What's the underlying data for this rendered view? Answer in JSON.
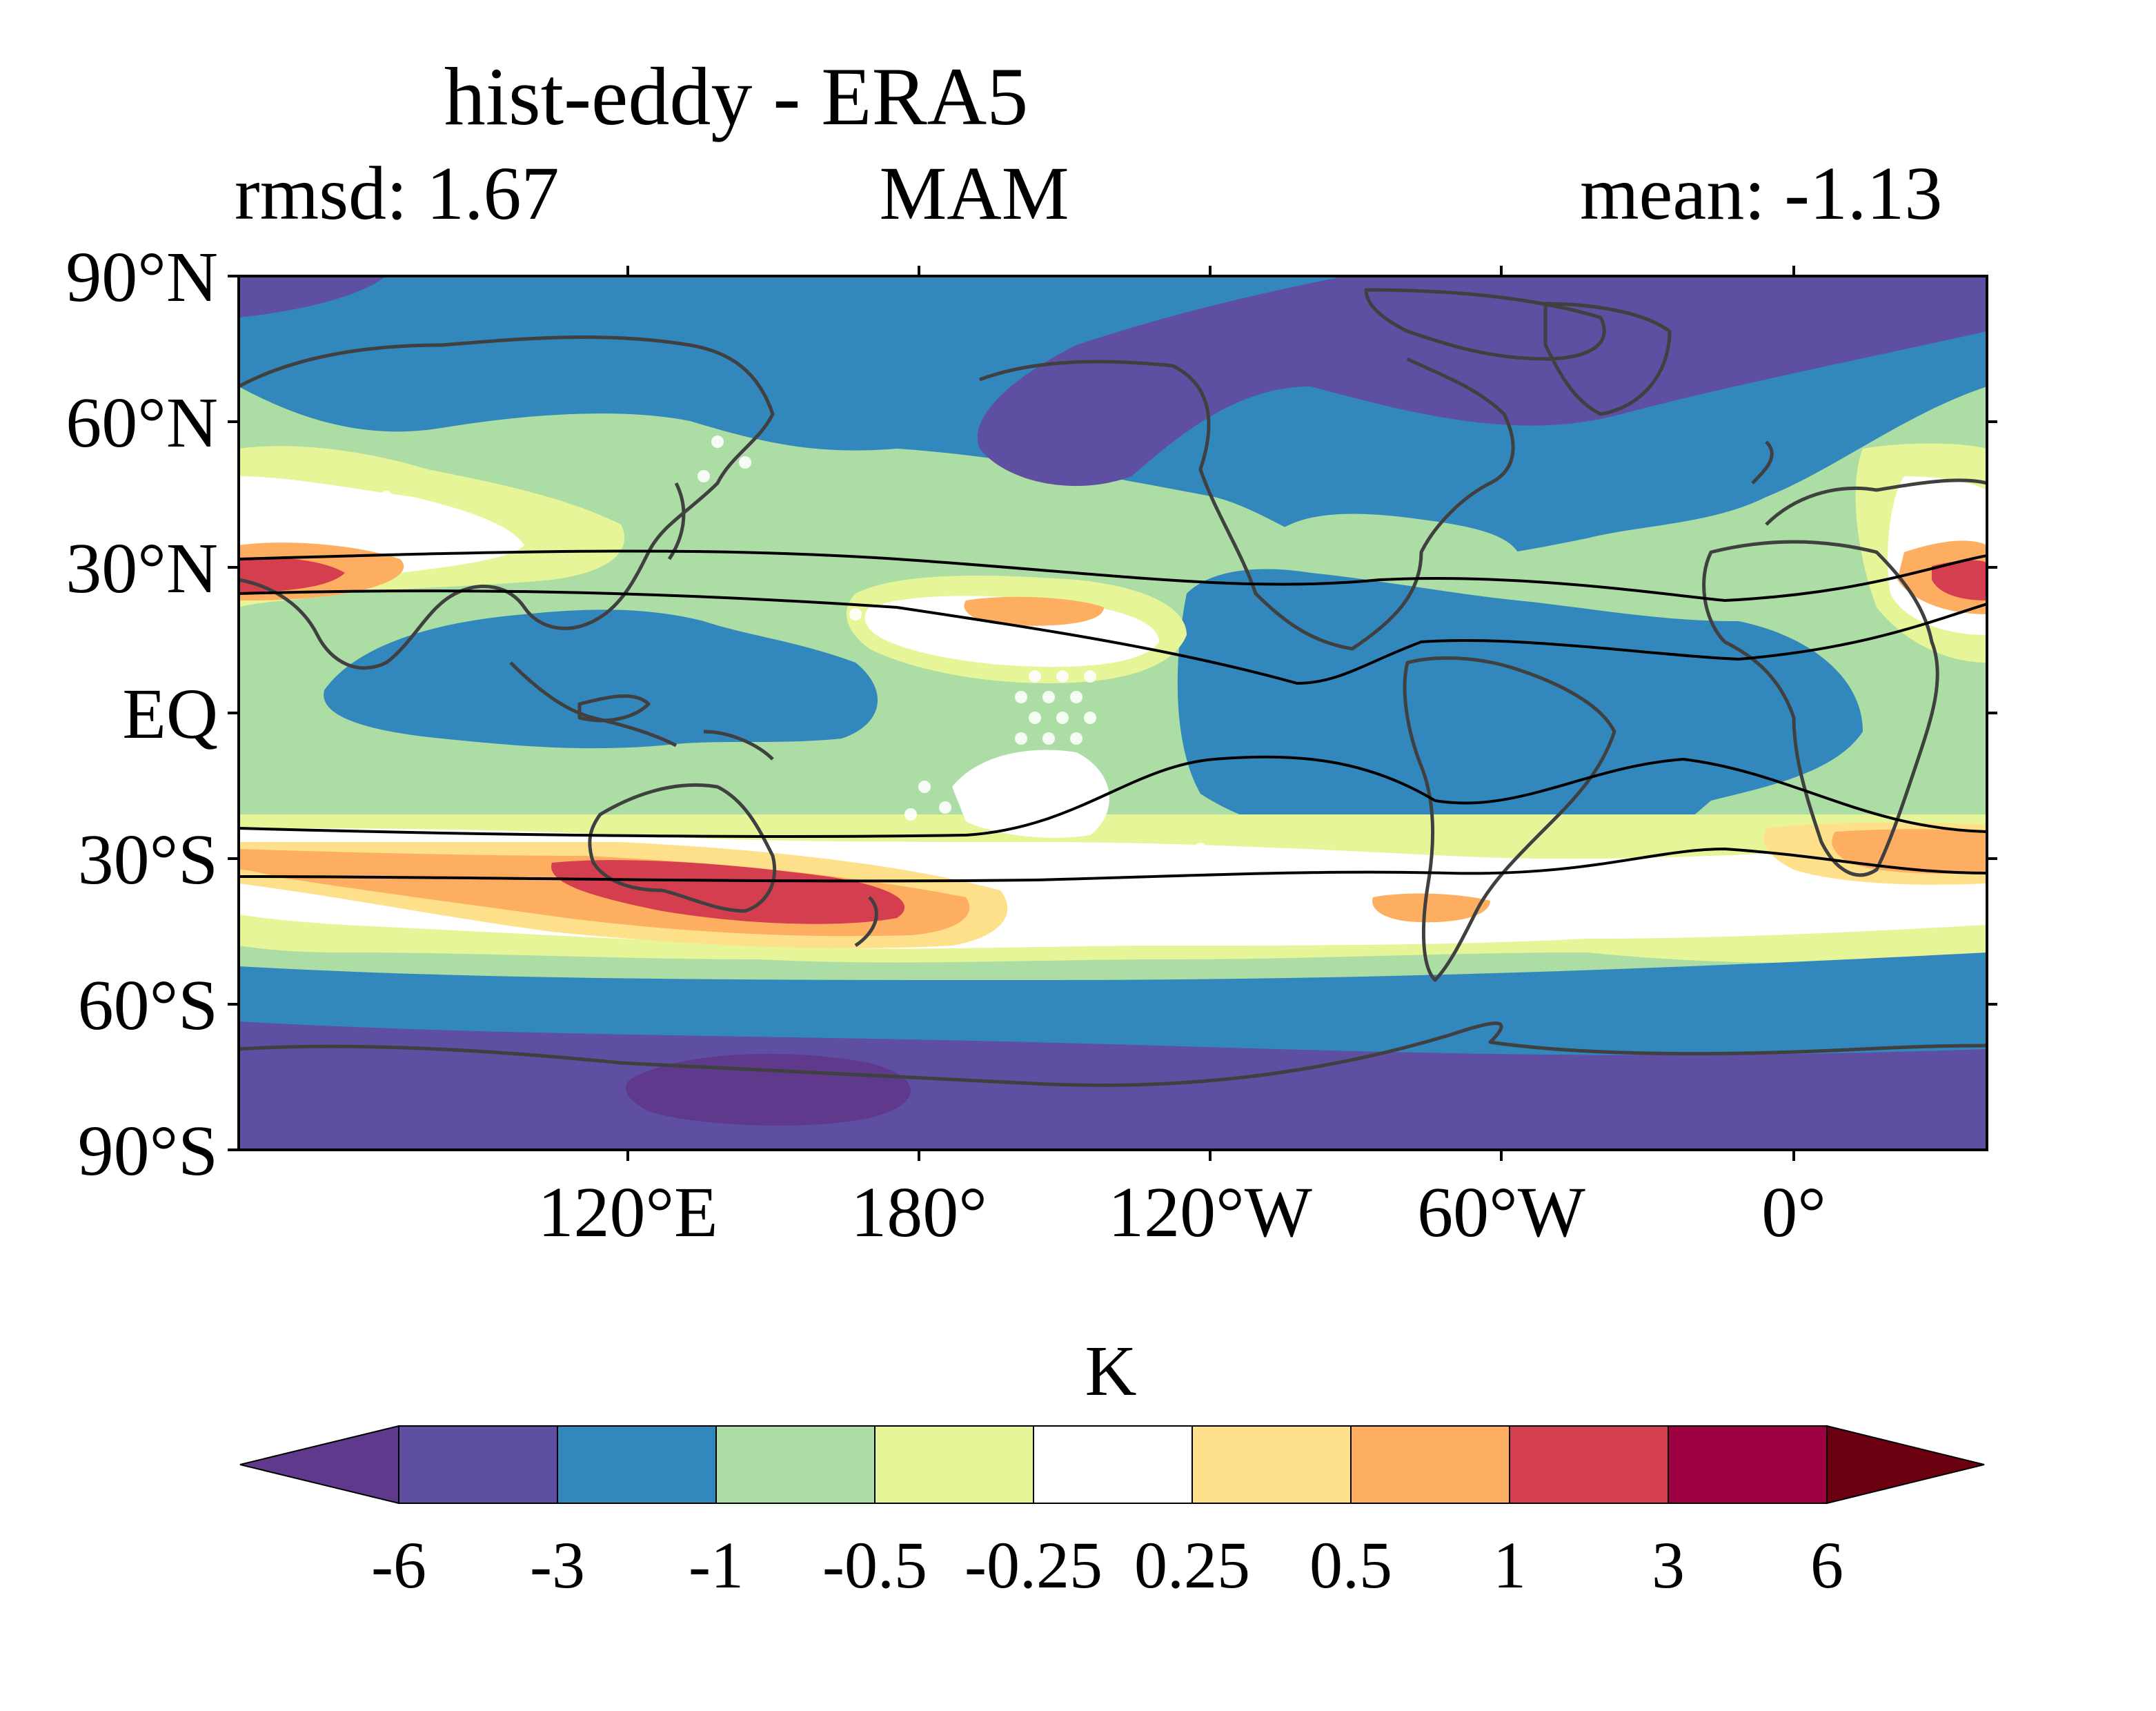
{
  "title": "hist-eddy - ERA5",
  "stats": {
    "rmsd": "rmsd: 1.67",
    "season": "MAM",
    "mean": "mean: -1.13"
  },
  "axes": {
    "lat_labels": [
      "90°N",
      "60°N",
      "30°N",
      "EQ",
      "30°S",
      "60°S",
      "90°S"
    ],
    "lon_labels": [
      "120°E",
      "180°",
      "120°W",
      "60°W",
      "0°"
    ]
  },
  "colorbar": {
    "unit": "K",
    "tick_labels": [
      "-6",
      "-3",
      "-1",
      "-0.5",
      "-0.25",
      "0.25",
      "0.5",
      "1",
      "3",
      "6"
    ],
    "colors": [
      "#5f3a8c",
      "#5e4fa2",
      "#3288bd",
      "#abdda4",
      "#e6f598",
      "#ffffff",
      "#fee08b",
      "#fdae61",
      "#d53e4f",
      "#9e0142",
      "#6a0010"
    ]
  }
}
